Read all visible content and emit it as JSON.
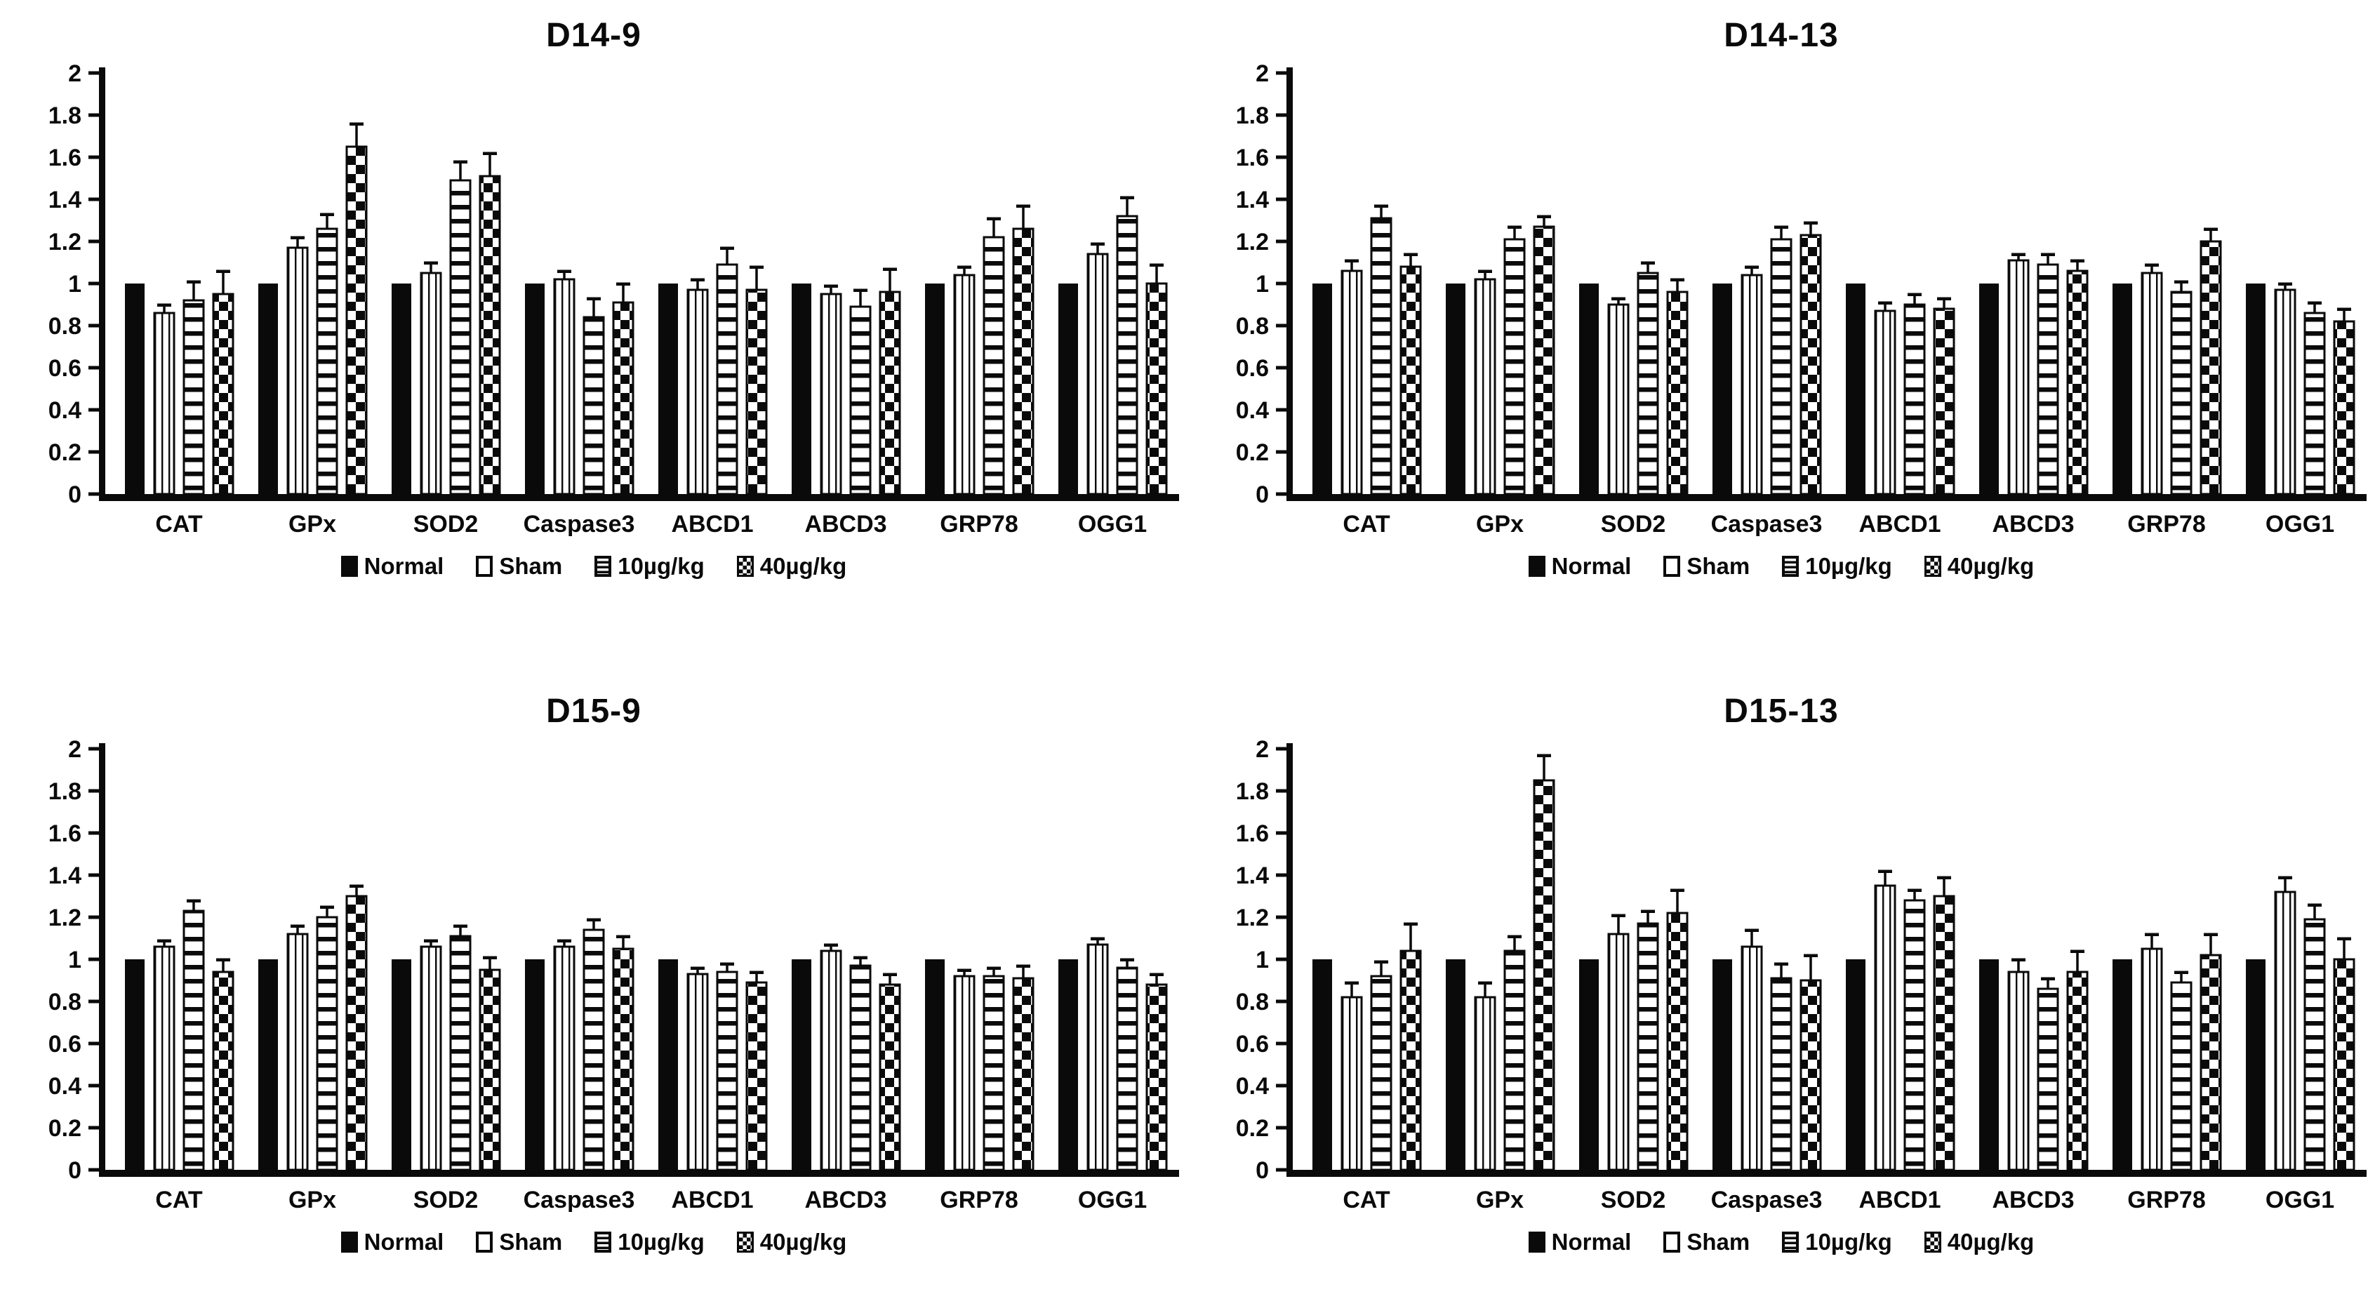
{
  "figure": {
    "background": "#ffffff",
    "ink": "#0a0a0a"
  },
  "legend": {
    "items": [
      {
        "name": "Normal",
        "pattern": "solid"
      },
      {
        "name": "Sham",
        "pattern": "vertical-stripes"
      },
      {
        "name": "10µg/kg",
        "pattern": "horizontal-stripes"
      },
      {
        "name": "40µg/kg",
        "pattern": "checker"
      }
    ]
  },
  "chart_data": [
    {
      "type": "bar",
      "title": "D14-9",
      "categories": [
        "CAT",
        "GPx",
        "SOD2",
        "Caspase3",
        "ABCD1",
        "ABCD3",
        "GRP78",
        "OGG1"
      ],
      "ylim": [
        0,
        2
      ],
      "ytick_step": 0.2,
      "grid": false,
      "legend_position": "bottom",
      "series": [
        {
          "name": "Normal",
          "pattern": "solid",
          "values": [
            1.0,
            1.0,
            1.0,
            1.0,
            1.0,
            1.0,
            1.0,
            1.0
          ],
          "errors": [
            0,
            0,
            0,
            0,
            0,
            0,
            0,
            0
          ]
        },
        {
          "name": "Sham",
          "pattern": "vertical-stripes",
          "values": [
            0.86,
            1.17,
            1.05,
            1.02,
            0.97,
            0.95,
            1.04,
            1.14
          ],
          "errors": [
            0.03,
            0.04,
            0.04,
            0.03,
            0.04,
            0.03,
            0.03,
            0.04
          ]
        },
        {
          "name": "10µg/kg",
          "pattern": "horizontal-stripes",
          "values": [
            0.92,
            1.26,
            1.49,
            0.84,
            1.09,
            0.89,
            1.22,
            1.32
          ],
          "errors": [
            0.08,
            0.06,
            0.08,
            0.08,
            0.07,
            0.07,
            0.08,
            0.08
          ]
        },
        {
          "name": "40µg/kg",
          "pattern": "checker",
          "values": [
            0.95,
            1.65,
            1.51,
            0.91,
            0.97,
            0.96,
            1.26,
            1.0
          ],
          "errors": [
            0.1,
            0.1,
            0.1,
            0.08,
            0.1,
            0.1,
            0.1,
            0.08
          ]
        }
      ]
    },
    {
      "type": "bar",
      "title": "D14-13",
      "categories": [
        "CAT",
        "GPx",
        "SOD2",
        "Caspase3",
        "ABCD1",
        "ABCD3",
        "GRP78",
        "OGG1"
      ],
      "ylim": [
        0,
        2
      ],
      "ytick_step": 0.2,
      "grid": false,
      "legend_position": "bottom",
      "series": [
        {
          "name": "Normal",
          "pattern": "solid",
          "values": [
            1.0,
            1.0,
            1.0,
            1.0,
            1.0,
            1.0,
            1.0,
            1.0
          ],
          "errors": [
            0,
            0,
            0,
            0,
            0,
            0,
            0,
            0
          ]
        },
        {
          "name": "Sham",
          "pattern": "vertical-stripes",
          "values": [
            1.06,
            1.02,
            0.9,
            1.04,
            0.87,
            1.11,
            1.05,
            0.97
          ],
          "errors": [
            0.04,
            0.03,
            0.02,
            0.03,
            0.03,
            0.02,
            0.03,
            0.02
          ]
        },
        {
          "name": "10µg/kg",
          "pattern": "horizontal-stripes",
          "values": [
            1.31,
            1.21,
            1.05,
            1.21,
            0.9,
            1.09,
            0.96,
            0.86
          ],
          "errors": [
            0.05,
            0.05,
            0.04,
            0.05,
            0.04,
            0.04,
            0.04,
            0.04
          ]
        },
        {
          "name": "40µg/kg",
          "pattern": "checker",
          "values": [
            1.08,
            1.27,
            0.96,
            1.23,
            0.88,
            1.06,
            1.2,
            0.82
          ],
          "errors": [
            0.05,
            0.04,
            0.05,
            0.05,
            0.04,
            0.04,
            0.05,
            0.05
          ]
        }
      ]
    },
    {
      "type": "bar",
      "title": "D15-9",
      "categories": [
        "CAT",
        "GPx",
        "SOD2",
        "Caspase3",
        "ABCD1",
        "ABCD3",
        "GRP78",
        "OGG1"
      ],
      "ylim": [
        0,
        2
      ],
      "ytick_step": 0.2,
      "grid": false,
      "legend_position": "bottom",
      "series": [
        {
          "name": "Normal",
          "pattern": "solid",
          "values": [
            1.0,
            1.0,
            1.0,
            1.0,
            1.0,
            1.0,
            1.0,
            1.0
          ],
          "errors": [
            0,
            0,
            0,
            0,
            0,
            0,
            0,
            0
          ]
        },
        {
          "name": "Sham",
          "pattern": "vertical-stripes",
          "values": [
            1.06,
            1.12,
            1.06,
            1.06,
            0.93,
            1.04,
            0.92,
            1.07
          ],
          "errors": [
            0.02,
            0.03,
            0.02,
            0.02,
            0.02,
            0.02,
            0.02,
            0.02
          ]
        },
        {
          "name": "10µg/kg",
          "pattern": "horizontal-stripes",
          "values": [
            1.23,
            1.2,
            1.11,
            1.14,
            0.94,
            0.97,
            0.92,
            0.96
          ],
          "errors": [
            0.04,
            0.04,
            0.04,
            0.04,
            0.03,
            0.03,
            0.03,
            0.03
          ]
        },
        {
          "name": "40µg/kg",
          "pattern": "checker",
          "values": [
            0.94,
            1.3,
            0.95,
            1.05,
            0.89,
            0.88,
            0.91,
            0.88
          ],
          "errors": [
            0.05,
            0.04,
            0.05,
            0.05,
            0.04,
            0.04,
            0.05,
            0.04
          ]
        }
      ]
    },
    {
      "type": "bar",
      "title": "D15-13",
      "categories": [
        "CAT",
        "GPx",
        "SOD2",
        "Caspase3",
        "ABCD1",
        "ABCD3",
        "GRP78",
        "OGG1"
      ],
      "ylim": [
        0,
        2
      ],
      "ytick_step": 0.2,
      "grid": false,
      "legend_position": "bottom",
      "series": [
        {
          "name": "Normal",
          "pattern": "solid",
          "values": [
            1.0,
            1.0,
            1.0,
            1.0,
            1.0,
            1.0,
            1.0,
            1.0
          ],
          "errors": [
            0,
            0,
            0,
            0,
            0,
            0,
            0,
            0
          ]
        },
        {
          "name": "Sham",
          "pattern": "vertical-stripes",
          "values": [
            0.82,
            0.82,
            1.12,
            1.06,
            1.35,
            0.94,
            1.05,
            1.32
          ],
          "errors": [
            0.06,
            0.06,
            0.08,
            0.07,
            0.06,
            0.05,
            0.06,
            0.06
          ]
        },
        {
          "name": "10µg/kg",
          "pattern": "horizontal-stripes",
          "values": [
            0.92,
            1.04,
            1.17,
            0.91,
            1.28,
            0.86,
            0.89,
            1.19
          ],
          "errors": [
            0.06,
            0.06,
            0.05,
            0.06,
            0.04,
            0.04,
            0.04,
            0.06
          ]
        },
        {
          "name": "40µg/kg",
          "pattern": "checker",
          "values": [
            1.04,
            1.85,
            1.22,
            0.9,
            1.3,
            0.94,
            1.02,
            1.0
          ],
          "errors": [
            0.12,
            0.11,
            0.1,
            0.11,
            0.08,
            0.09,
            0.09,
            0.09
          ]
        }
      ]
    }
  ]
}
